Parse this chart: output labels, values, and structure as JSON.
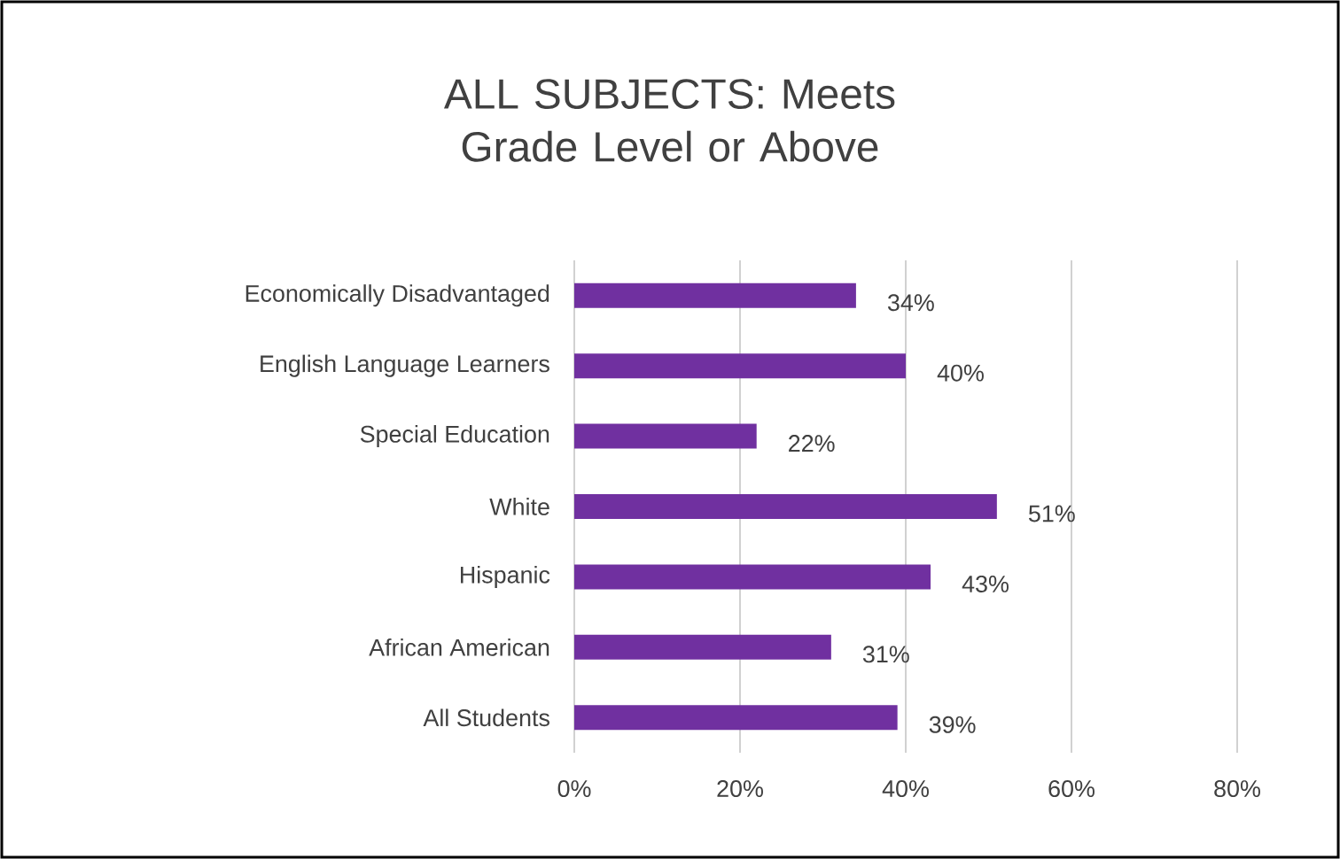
{
  "chart_data": {
    "type": "bar",
    "orientation": "horizontal",
    "title": "ALL SUBJECTS: Meets Grade Level or Above",
    "categories": [
      "Economically Disadvantaged",
      "English Language Learners",
      "Special Education",
      "White",
      "Hispanic",
      "African American",
      "All Students"
    ],
    "values": [
      34,
      40,
      22,
      51,
      43,
      31,
      39
    ],
    "value_labels": [
      "34%",
      "40%",
      "22%",
      "51%",
      "43%",
      "31%",
      "39%"
    ],
    "color": "#7030a0",
    "xlim": [
      0,
      80
    ],
    "xticks": [
      {
        "value": 0,
        "label": "0%"
      },
      {
        "value": 20,
        "label": "20%"
      },
      {
        "value": 40,
        "label": "40%"
      },
      {
        "value": 60,
        "label": "60%"
      },
      {
        "value": 80,
        "label": "80%"
      }
    ],
    "grid": "x"
  }
}
